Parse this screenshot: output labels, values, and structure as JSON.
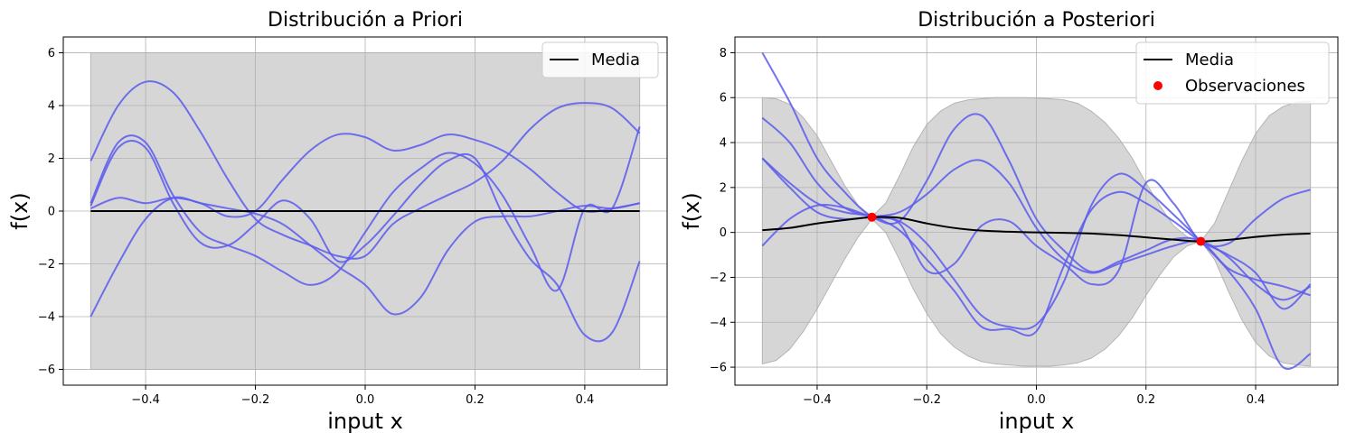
{
  "chart_data": [
    {
      "type": "line",
      "title": "Distribución a Priori",
      "xlabel": "input x",
      "ylabel": "f(x)",
      "xlim": [
        -0.55,
        0.55
      ],
      "ylim": [
        -6.6,
        6.6
      ],
      "xticks": [
        -0.4,
        -0.2,
        0.0,
        0.2,
        0.4
      ],
      "xtick_labels": [
        "−0.4",
        "−0.2",
        "0.0",
        "0.2",
        "0.4"
      ],
      "yticks": [
        -6,
        -4,
        -2,
        0,
        2,
        4,
        6
      ],
      "ytick_labels": [
        "−6",
        "−4",
        "−2",
        "0",
        "2",
        "4",
        "6"
      ],
      "grid": true,
      "legend": {
        "position": "top-right",
        "entries": [
          {
            "label": "Media",
            "kind": "line",
            "color": "#000000"
          }
        ]
      },
      "band": {
        "color": "#c8c8c8",
        "x": [
          -0.5,
          0.5
        ],
        "lower": [
          -6,
          -6
        ],
        "upper": [
          6,
          6
        ]
      },
      "mean": {
        "name": "Media",
        "color": "#000000",
        "x": [
          -0.5,
          0.5
        ],
        "y": [
          0,
          0
        ]
      },
      "samples_color": "#5a5af0",
      "samples": [
        {
          "x": [
            -0.5,
            -0.45,
            -0.4,
            -0.35,
            -0.3,
            -0.25,
            -0.2,
            -0.15,
            -0.1,
            -0.05,
            0.0,
            0.05,
            0.1,
            0.15,
            0.2,
            0.25,
            0.3,
            0.35,
            0.4,
            0.45,
            0.5
          ],
          "y": [
            1.9,
            4.0,
            4.9,
            4.5,
            3.0,
            1.2,
            -0.3,
            -0.9,
            -1.3,
            -1.7,
            -1.7,
            -0.5,
            0.1,
            0.6,
            1.1,
            1.9,
            3.1,
            3.9,
            4.1,
            3.9,
            2.95
          ]
        },
        {
          "x": [
            -0.5,
            -0.45,
            -0.4,
            -0.35,
            -0.3,
            -0.25,
            -0.2,
            -0.15,
            -0.1,
            -0.05,
            0.0,
            0.05,
            0.1,
            0.15,
            0.2,
            0.25,
            0.3,
            0.35,
            0.4,
            0.45,
            0.5
          ],
          "y": [
            0.2,
            2.4,
            2.4,
            0.3,
            -1.2,
            -1.3,
            -0.5,
            0.4,
            -0.3,
            -1.9,
            -1.3,
            -0.2,
            1.0,
            1.9,
            2.0,
            -0.1,
            -1.8,
            -2.8,
            -4.7,
            -4.6,
            -1.9
          ]
        },
        {
          "x": [
            -0.5,
            -0.45,
            -0.4,
            -0.35,
            -0.3,
            -0.25,
            -0.2,
            -0.15,
            -0.1,
            -0.05,
            0.0,
            0.05,
            0.1,
            0.15,
            0.2,
            0.25,
            0.3,
            0.35,
            0.4,
            0.45,
            0.5
          ],
          "y": [
            0.3,
            2.6,
            2.6,
            0.6,
            -0.8,
            -1.3,
            -1.7,
            -2.3,
            -2.8,
            -2.3,
            -0.8,
            0.7,
            1.6,
            2.2,
            1.8,
            0.6,
            -1.3,
            -3.0,
            0.1,
            0.1,
            3.2
          ]
        },
        {
          "x": [
            -0.5,
            -0.45,
            -0.4,
            -0.35,
            -0.3,
            -0.25,
            -0.2,
            -0.15,
            -0.1,
            -0.05,
            0.0,
            0.05,
            0.1,
            0.15,
            0.2,
            0.25,
            0.3,
            0.35,
            0.4,
            0.45,
            0.5
          ],
          "y": [
            -4.0,
            -2.0,
            -0.3,
            0.5,
            0.3,
            0.1,
            -0.1,
            -0.5,
            -1.3,
            -2.1,
            -2.8,
            -3.9,
            -3.3,
            -1.5,
            -0.4,
            -0.2,
            -0.2,
            0.0,
            0.2,
            0.1,
            0.3
          ]
        },
        {
          "x": [
            -0.5,
            -0.45,
            -0.4,
            -0.35,
            -0.3,
            -0.25,
            -0.2,
            -0.15,
            -0.1,
            -0.05,
            0.0,
            0.05,
            0.1,
            0.15,
            0.2,
            0.25,
            0.3,
            0.35,
            0.4,
            0.45,
            0.5
          ],
          "y": [
            0.1,
            0.5,
            0.3,
            0.5,
            0.3,
            -0.2,
            0.0,
            1.2,
            2.3,
            2.9,
            2.8,
            2.3,
            2.5,
            2.9,
            2.7,
            2.3,
            1.6,
            0.7,
            0.0,
            0.1,
            0.3
          ]
        }
      ]
    },
    {
      "type": "line",
      "title": "Distribución a Posteriori",
      "xlabel": "input x",
      "ylabel": "f(x)",
      "xlim": [
        -0.55,
        0.55
      ],
      "ylim": [
        -6.8,
        8.7
      ],
      "xticks": [
        -0.4,
        -0.2,
        0.0,
        0.2,
        0.4
      ],
      "xtick_labels": [
        "−0.4",
        "−0.2",
        "0.0",
        "0.2",
        "0.4"
      ],
      "yticks": [
        -6,
        -4,
        -2,
        0,
        2,
        4,
        6,
        8
      ],
      "ytick_labels": [
        "−6",
        "−4",
        "−2",
        "0",
        "2",
        "4",
        "6",
        "8"
      ],
      "grid": true,
      "legend": {
        "position": "top-right",
        "entries": [
          {
            "label": "Media",
            "kind": "line",
            "color": "#000000"
          },
          {
            "label": "Observaciones",
            "kind": "point",
            "color": "#ff0000"
          }
        ]
      },
      "band": {
        "color": "#c8c8c8",
        "x": [
          -0.5,
          -0.475,
          -0.45,
          -0.425,
          -0.4,
          -0.375,
          -0.35,
          -0.325,
          -0.3,
          -0.275,
          -0.25,
          -0.225,
          -0.2,
          -0.175,
          -0.15,
          -0.125,
          -0.1,
          -0.075,
          -0.05,
          -0.025,
          0.0,
          0.025,
          0.05,
          0.075,
          0.1,
          0.125,
          0.15,
          0.175,
          0.2,
          0.225,
          0.25,
          0.275,
          0.3,
          0.325,
          0.35,
          0.375,
          0.4,
          0.425,
          0.45,
          0.475,
          0.5
        ],
        "upper": [
          6.0,
          5.95,
          5.7,
          5.1,
          4.3,
          3.2,
          2.1,
          1.2,
          0.7,
          1.3,
          2.5,
          3.8,
          4.8,
          5.4,
          5.75,
          5.9,
          5.95,
          6.0,
          6.0,
          6.0,
          5.98,
          5.95,
          5.9,
          5.75,
          5.4,
          4.9,
          4.2,
          3.3,
          2.2,
          1.2,
          0.3,
          -0.2,
          -0.4,
          0.4,
          1.8,
          3.2,
          4.4,
          5.2,
          5.6,
          5.8,
          5.85
        ],
        "lower": [
          -5.85,
          -5.7,
          -5.2,
          -4.4,
          -3.4,
          -2.3,
          -1.2,
          -0.2,
          0.6,
          0.0,
          -1.2,
          -2.5,
          -3.6,
          -4.5,
          -5.1,
          -5.5,
          -5.75,
          -5.85,
          -5.9,
          -5.95,
          -5.95,
          -5.95,
          -5.9,
          -5.8,
          -5.6,
          -5.2,
          -4.6,
          -3.8,
          -2.8,
          -1.9,
          -1.1,
          -0.6,
          -0.4,
          -1.2,
          -2.6,
          -3.9,
          -4.9,
          -5.5,
          -5.8,
          -5.9,
          -5.95
        ]
      },
      "mean": {
        "name": "Media",
        "color": "#000000",
        "x": [
          -0.5,
          -0.45,
          -0.4,
          -0.35,
          -0.3,
          -0.25,
          -0.2,
          -0.15,
          -0.1,
          -0.05,
          0.0,
          0.05,
          0.1,
          0.15,
          0.2,
          0.25,
          0.3,
          0.35,
          0.4,
          0.45,
          0.5
        ],
        "y": [
          0.1,
          0.2,
          0.4,
          0.55,
          0.68,
          0.65,
          0.4,
          0.2,
          0.08,
          0.03,
          0.0,
          -0.02,
          -0.05,
          -0.12,
          -0.22,
          -0.32,
          -0.4,
          -0.33,
          -0.2,
          -0.1,
          -0.05
        ]
      },
      "samples_color": "#5a5af0",
      "samples": [
        {
          "x": [
            -0.5,
            -0.45,
            -0.4,
            -0.35,
            -0.3,
            -0.25,
            -0.2,
            -0.15,
            -0.1,
            -0.05,
            0.0,
            0.05,
            0.1,
            0.15,
            0.2,
            0.25,
            0.3,
            0.35,
            0.4,
            0.45,
            0.5
          ],
          "y": [
            8.0,
            5.8,
            3.3,
            1.8,
            0.7,
            0.5,
            2.3,
            4.6,
            5.2,
            3.2,
            0.6,
            -0.8,
            -1.75,
            -1.3,
            -0.8,
            -0.3,
            -0.4,
            -1.6,
            -2.1,
            -2.4,
            -2.8
          ]
        },
        {
          "x": [
            -0.5,
            -0.45,
            -0.4,
            -0.35,
            -0.3,
            -0.25,
            -0.2,
            -0.15,
            -0.1,
            -0.05,
            0.0,
            0.05,
            0.1,
            0.15,
            0.2,
            0.25,
            0.3,
            0.35,
            0.4,
            0.45,
            0.5
          ],
          "y": [
            5.1,
            4.0,
            2.2,
            1.1,
            0.7,
            0.4,
            -1.7,
            -1.4,
            0.3,
            0.5,
            -0.6,
            -1.4,
            -2.3,
            -1.7,
            2.2,
            1.3,
            -0.4,
            -0.5,
            0.6,
            1.5,
            1.9
          ]
        },
        {
          "x": [
            -0.5,
            -0.45,
            -0.4,
            -0.35,
            -0.3,
            -0.25,
            -0.2,
            -0.15,
            -0.1,
            -0.05,
            0.0,
            0.05,
            0.1,
            0.15,
            0.2,
            0.25,
            0.3,
            0.35,
            0.4,
            0.45,
            0.5
          ],
          "y": [
            3.3,
            2.0,
            0.9,
            0.6,
            0.7,
            0.9,
            1.7,
            2.8,
            3.2,
            2.2,
            0.2,
            -1.2,
            -1.8,
            -1.4,
            -1.0,
            -0.6,
            -0.4,
            -1.1,
            -2.3,
            -3.0,
            -2.4
          ]
        },
        {
          "x": [
            -0.5,
            -0.45,
            -0.4,
            -0.35,
            -0.3,
            -0.25,
            -0.2,
            -0.15,
            -0.1,
            -0.05,
            0.0,
            0.05,
            0.1,
            0.15,
            0.2,
            0.25,
            0.3,
            0.35,
            0.4,
            0.45,
            0.5
          ],
          "y": [
            -0.6,
            0.6,
            1.2,
            1.1,
            0.7,
            0.5,
            -0.5,
            -2.1,
            -3.7,
            -4.2,
            -4.1,
            -2.2,
            1.2,
            2.6,
            1.9,
            0.8,
            -0.4,
            -1.7,
            -3.4,
            -6.0,
            -5.4
          ]
        },
        {
          "x": [
            -0.5,
            -0.45,
            -0.4,
            -0.35,
            -0.3,
            -0.25,
            -0.2,
            -0.15,
            -0.1,
            -0.05,
            0.0,
            0.05,
            0.1,
            0.15,
            0.2,
            0.25,
            0.3,
            0.35,
            0.4,
            0.45,
            0.5
          ],
          "y": [
            3.3,
            2.2,
            1.3,
            0.9,
            0.7,
            0.1,
            -1.2,
            -2.6,
            -4.2,
            -4.3,
            -4.4,
            -1.5,
            1.0,
            1.8,
            1.3,
            0.5,
            -0.4,
            -1.0,
            -1.8,
            -3.4,
            -2.3
          ]
        }
      ],
      "observations": {
        "name": "Observaciones",
        "color": "#ff0000",
        "x": [
          -0.3,
          0.3
        ],
        "y": [
          0.68,
          -0.4
        ]
      }
    }
  ]
}
